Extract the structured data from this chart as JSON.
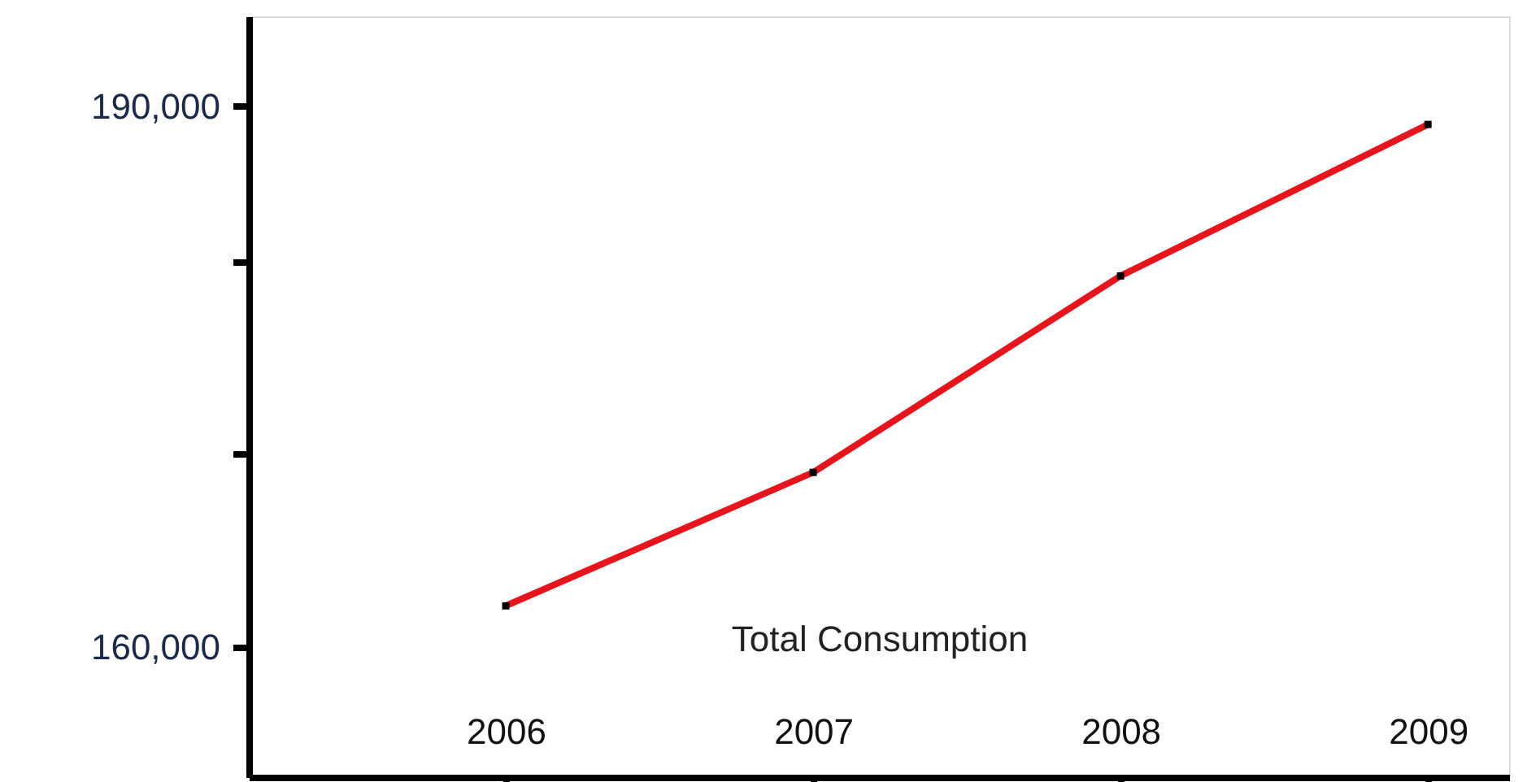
{
  "chart_data": {
    "type": "line",
    "xlabel": "Total Consumption",
    "categories": [
      "2006",
      "2007",
      "2008",
      "2009"
    ],
    "series": [
      {
        "color": "#e8141c",
        "values": [
          162300,
          169700,
          180600,
          189000
        ]
      }
    ],
    "ylim": [
      152800,
      195000
    ],
    "yticks": [
      {
        "value": 160000,
        "label": "160,000"
      },
      {
        "value": 170700,
        "label": null
      },
      {
        "value": 181400,
        "label": null
      },
      {
        "value": 190000,
        "label": "190,000"
      }
    ],
    "grid": false,
    "marker": "square",
    "line_style": "solid"
  }
}
